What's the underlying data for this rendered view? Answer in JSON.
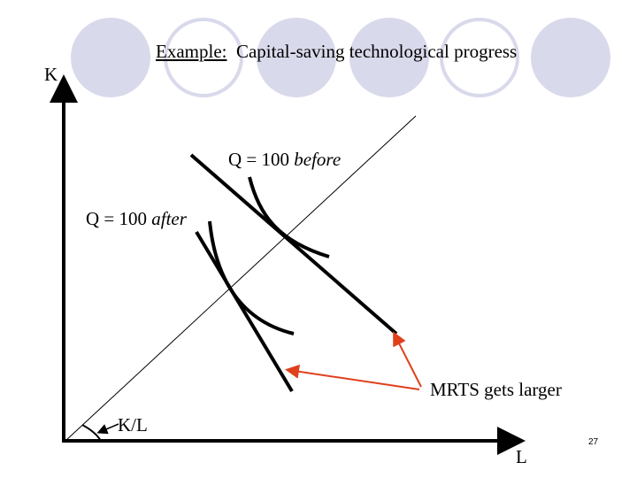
{
  "slide": {
    "title_prefix": "Example:",
    "title_rest": "Capital-saving technological progress",
    "page_number": "27"
  },
  "diagram": {
    "y_axis_label": "K",
    "x_axis_label": "L",
    "isoquant_before_label": "Q = 100",
    "isoquant_before_italic": "before",
    "isoquant_after_label": "Q = 100",
    "isoquant_after_italic": "after",
    "mrts_note": "MRTS gets larger",
    "ray_label": "K/L",
    "arrow_color": "#e0401c",
    "decor_color": "#d9d9ec"
  }
}
